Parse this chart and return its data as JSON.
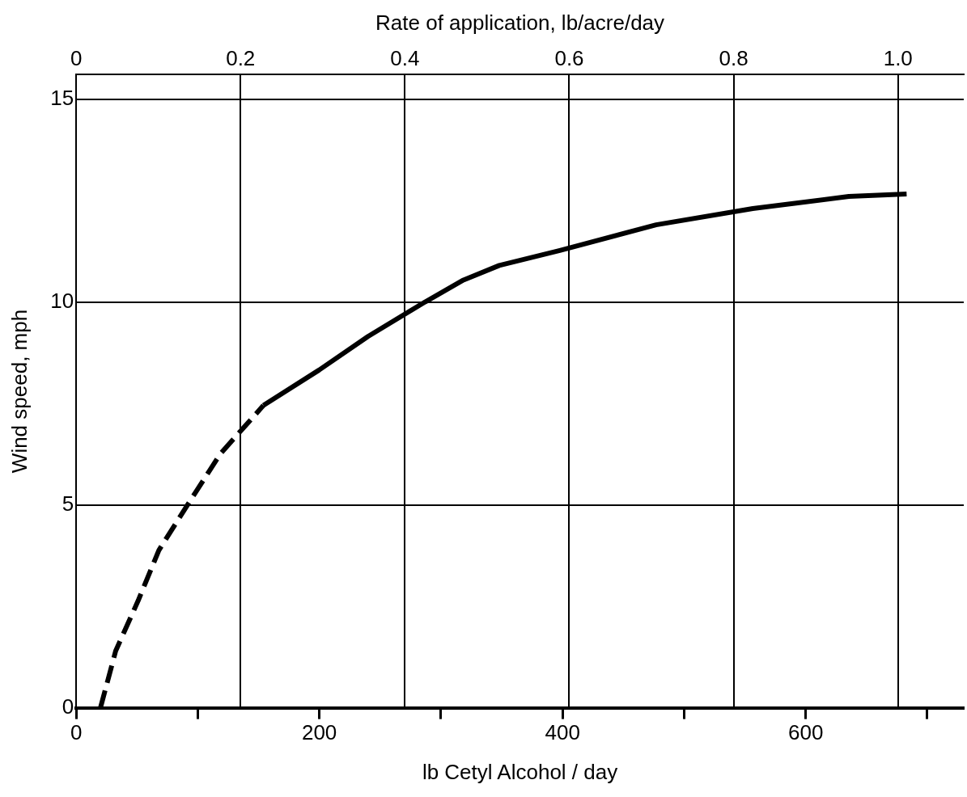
{
  "chart_data": {
    "type": "line",
    "xlabel": "lb Cetyl Alcohol / day",
    "x2label": "Rate of application, lb/acre/day",
    "ylabel": "Wind speed, mph",
    "xlim": [
      0,
      730
    ],
    "xticks": [
      0,
      {
        "value": 100,
        "label": null
      },
      200,
      {
        "value": 300,
        "label": null
      },
      400,
      {
        "value": 500,
        "label": null
      },
      600,
      {
        "value": 700,
        "label": null
      }
    ],
    "x2lim": [
      0,
      1.08
    ],
    "x2ticks": [
      0,
      0.2,
      0.4,
      0.6,
      0.8,
      {
        "value": 1.0,
        "label": "1.0"
      }
    ],
    "ylim": [
      0,
      15.6
    ],
    "yticks": [
      0,
      5,
      10,
      15
    ],
    "grid": true,
    "legend": false,
    "marker": "none",
    "series": [
      {
        "color": "#000000",
        "line_style": "dashed",
        "x": [
          20,
          32.5,
          51,
          68,
          91.6,
          118.7,
          154
        ],
        "values": [
          0,
          1.4,
          2.64,
          3.88,
          5.0,
          6.26,
          7.45
        ]
      },
      {
        "color": "#000000",
        "line_style": "solid",
        "x": [
          154,
          199.7,
          240,
          287,
          318.5,
          348,
          397.8,
          477,
          556.5,
          635.5,
          683
        ],
        "values": [
          7.45,
          8.32,
          9.15,
          10,
          10.54,
          10.9,
          11.27,
          11.9,
          12.3,
          12.6,
          12.66
        ]
      }
    ]
  }
}
